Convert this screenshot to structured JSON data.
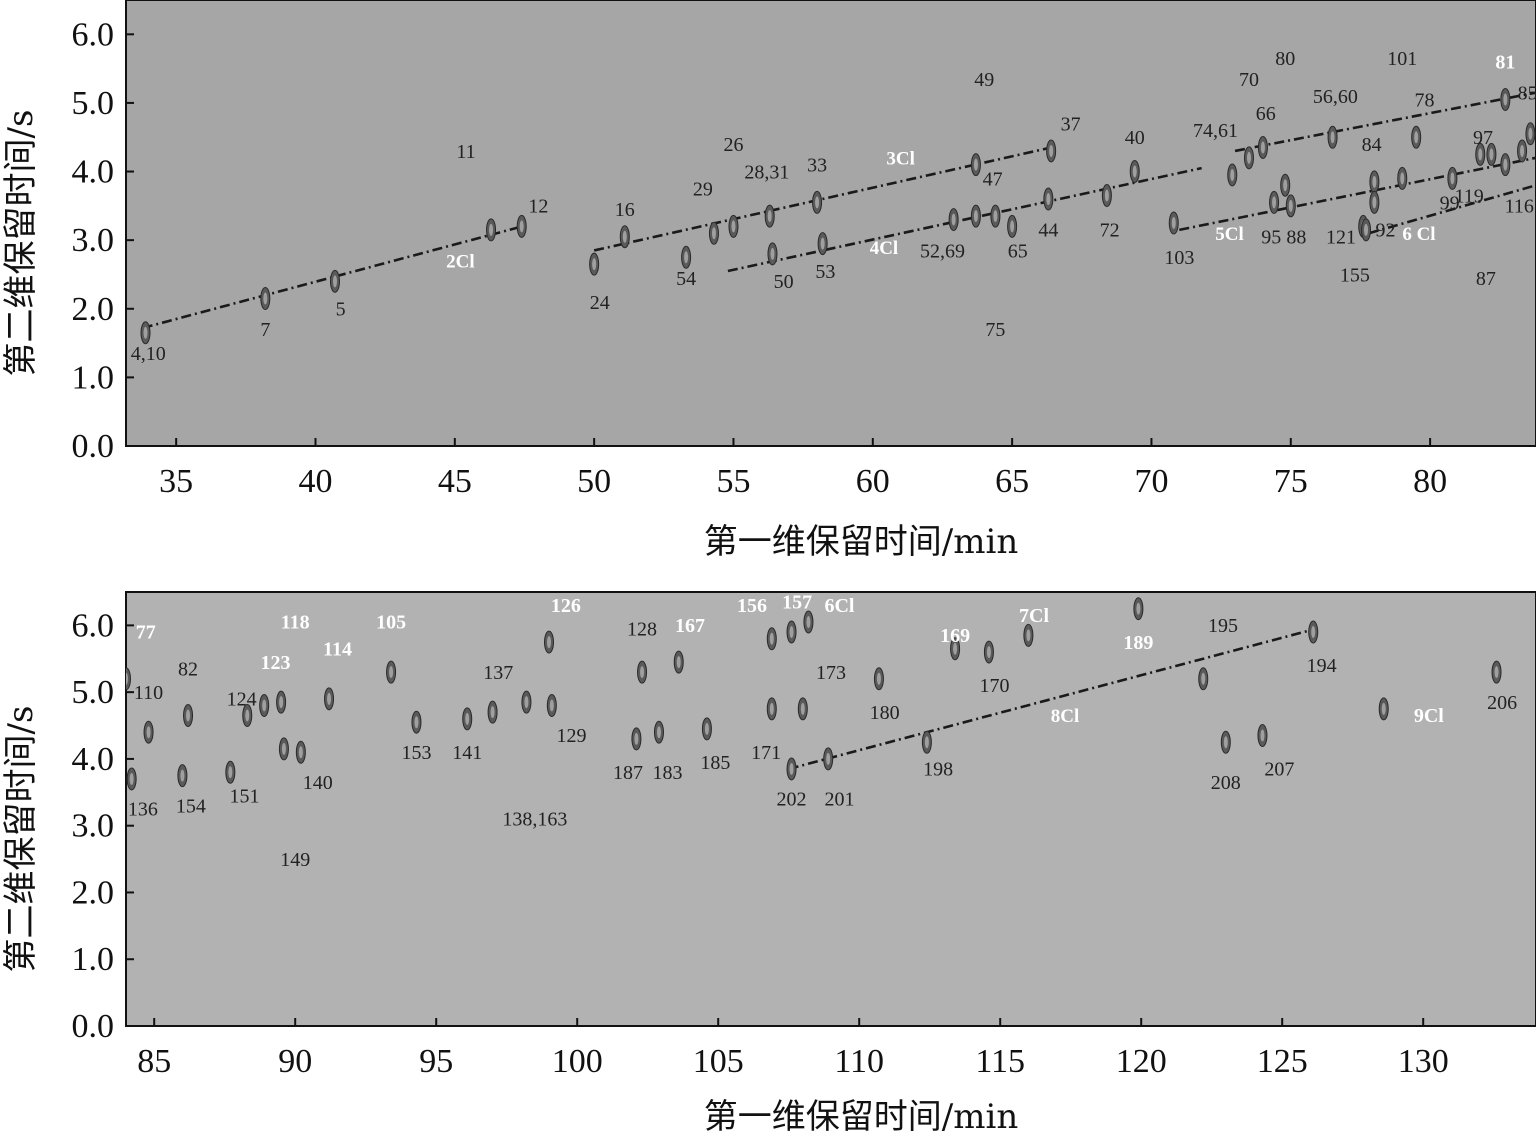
{
  "chart_data": [
    {
      "type": "scatter",
      "xlabel": "第一维保留时间/min",
      "ylabel": "第二维保留时间/s",
      "xlim": [
        33.2,
        83.8
      ],
      "ylim": [
        0,
        6.5
      ],
      "xticks": [
        "35",
        "40",
        "45",
        "50",
        "55",
        "60",
        "65",
        "70",
        "75",
        "80"
      ],
      "yticks": [
        "0.0",
        "1.0",
        "2.0",
        "3.0",
        "4.0",
        "5.0",
        "6.0"
      ],
      "background": "#a6a6a6",
      "series": [
        {
          "name": "2Cl",
          "line": [
            [
              33.8,
              1.72
            ],
            [
              47.6,
              3.22
            ]
          ],
          "label_at": [
            45.2,
            2.6
          ]
        },
        {
          "name": "3Cl",
          "line": [
            [
              50.0,
              2.85
            ],
            [
              66.4,
              4.35
            ]
          ],
          "label_at": [
            61.0,
            4.1
          ]
        },
        {
          "name": "4Cl",
          "line": [
            [
              54.8,
              2.55
            ],
            [
              71.8,
              4.05
            ]
          ],
          "label_at": [
            60.4,
            2.8
          ]
        },
        {
          "name": "5Cl",
          "line": [
            [
              71.0,
              3.15
            ],
            [
              83.8,
              4.2
            ]
          ],
          "label_at": [
            72.8,
            3.0
          ]
        },
        {
          "name": "6 Cl",
          "line": [
            [
              77.8,
              3.1
            ],
            [
              83.8,
              3.8
            ]
          ],
          "label_at": [
            79.6,
            3.0
          ]
        },
        {
          "name": "",
          "line": [
            [
              73.0,
              4.3
            ],
            [
              83.8,
              5.15
            ]
          ],
          "label_at": null
        }
      ],
      "peaks": [
        {
          "label": "4,10",
          "x": 33.9,
          "y": 1.65,
          "lx": 34.0,
          "ly": 1.25
        },
        {
          "label": "7",
          "x": 38.2,
          "y": 2.15,
          "lx": 38.2,
          "ly": 1.6
        },
        {
          "label": "5",
          "x": 40.7,
          "y": 2.4,
          "lx": 40.9,
          "ly": 1.9
        },
        {
          "label": "11",
          "x": 46.3,
          "y": 3.15,
          "lx": 45.4,
          "ly": 4.2
        },
        {
          "label": "12",
          "x": 47.4,
          "y": 3.2,
          "lx": 48.0,
          "ly": 3.4
        },
        {
          "label": "16",
          "x": 51.1,
          "y": 3.05,
          "lx": 51.1,
          "ly": 3.35
        },
        {
          "label": "24",
          "x": 50.0,
          "y": 2.65,
          "lx": 50.2,
          "ly": 2.0
        },
        {
          "label": "54",
          "x": 53.3,
          "y": 2.75,
          "lx": 53.3,
          "ly": 2.35
        },
        {
          "label": "29",
          "x": 54.3,
          "y": 3.1,
          "lx": 53.9,
          "ly": 3.65
        },
        {
          "label": "26",
          "x": 55.0,
          "y": 3.2,
          "lx": 55.0,
          "ly": 4.3
        },
        {
          "label": "28,31",
          "x": 56.3,
          "y": 3.35,
          "lx": 56.2,
          "ly": 3.9
        },
        {
          "label": "50",
          "x": 56.4,
          "y": 2.8,
          "lx": 56.8,
          "ly": 2.3
        },
        {
          "label": "53",
          "x": 58.2,
          "y": 2.95,
          "lx": 58.3,
          "ly": 2.45
        },
        {
          "label": "33",
          "x": 58.0,
          "y": 3.55,
          "lx": 58.0,
          "ly": 4.0
        },
        {
          "label": "52,69",
          "x": 62.9,
          "y": 3.3,
          "lx": 62.5,
          "ly": 2.75
        },
        {
          "label": "47",
          "x": 63.7,
          "y": 3.35,
          "lx": 64.3,
          "ly": 3.8
        },
        {
          "label": "49",
          "x": 63.7,
          "y": 4.1,
          "lx": 64.0,
          "ly": 5.25
        },
        {
          "label": "75",
          "x": 64.4,
          "y": 3.35,
          "lx": 64.4,
          "ly": 1.6
        },
        {
          "label": "65",
          "x": 65.0,
          "y": 3.2,
          "lx": 65.2,
          "ly": 2.75
        },
        {
          "label": "44",
          "x": 66.3,
          "y": 3.6,
          "lx": 66.3,
          "ly": 3.05
        },
        {
          "label": "37",
          "x": 66.4,
          "y": 4.3,
          "lx": 67.1,
          "ly": 4.6
        },
        {
          "label": "72",
          "x": 68.4,
          "y": 3.65,
          "lx": 68.5,
          "ly": 3.05
        },
        {
          "label": "40",
          "x": 69.4,
          "y": 4.0,
          "lx": 69.4,
          "ly": 4.4
        },
        {
          "label": "103",
          "x": 70.8,
          "y": 3.25,
          "lx": 71.0,
          "ly": 2.65
        },
        {
          "label": "74,61",
          "x": 72.9,
          "y": 3.95,
          "lx": 72.3,
          "ly": 4.5
        },
        {
          "label": "70",
          "x": 73.5,
          "y": 4.2,
          "lx": 73.5,
          "ly": 5.25
        },
        {
          "label": "66",
          "x": 74.0,
          "y": 4.35,
          "lx": 74.1,
          "ly": 4.75
        },
        {
          "label": "95",
          "x": 74.4,
          "y": 3.55,
          "lx": 74.3,
          "ly": 2.95
        },
        {
          "label": "88",
          "x": 75.0,
          "y": 3.5,
          "lx": 75.2,
          "ly": 2.95
        },
        {
          "label": "80",
          "x": 74.8,
          "y": 3.8,
          "lx": 74.8,
          "ly": 5.55
        },
        {
          "label": "56,60",
          "x": 76.5,
          "y": 4.5,
          "lx": 76.6,
          "ly": 5.0
        },
        {
          "label": "121",
          "x": 77.6,
          "y": 3.2,
          "lx": 76.8,
          "ly": 2.95
        },
        {
          "label": "155",
          "x": 77.7,
          "y": 3.15,
          "lx": 77.3,
          "ly": 2.4
        },
        {
          "label": "84",
          "x": 78.0,
          "y": 3.85,
          "lx": 77.9,
          "ly": 4.3
        },
        {
          "label": "92",
          "x": 78.0,
          "y": 3.55,
          "lx": 78.4,
          "ly": 3.05
        },
        {
          "label": "101",
          "x": 79.0,
          "y": 3.9,
          "lx": 79.0,
          "ly": 5.55
        },
        {
          "label": "78",
          "x": 79.5,
          "y": 4.5,
          "lx": 79.8,
          "ly": 4.95
        },
        {
          "label": "99",
          "x": 80.8,
          "y": 3.9,
          "lx": 80.7,
          "ly": 3.45
        },
        {
          "label": "119",
          "x": 81.8,
          "y": 4.25,
          "lx": 81.4,
          "ly": 3.55
        },
        {
          "label": "97",
          "x": 82.2,
          "y": 4.25,
          "lx": 81.9,
          "ly": 4.4
        },
        {
          "label": "87",
          "x": 82.7,
          "y": 4.1,
          "lx": 82.0,
          "ly": 2.35
        },
        {
          "label": "116",
          "x": 83.3,
          "y": 4.3,
          "lx": 83.2,
          "ly": 3.4
        },
        {
          "label": "81",
          "x": 82.7,
          "y": 5.05,
          "lx": 82.7,
          "ly": 5.5,
          "white": true
        },
        {
          "label": "85",
          "x": 83.6,
          "y": 4.55,
          "lx": 83.5,
          "ly": 5.05
        }
      ]
    },
    {
      "type": "scatter",
      "xlabel": "第一维保留时间/min",
      "ylabel": "第二维保留时间/s",
      "xlim": [
        84,
        134
      ],
      "ylim": [
        0,
        6.5
      ],
      "xticks": [
        "85",
        "90",
        "95",
        "100",
        "105",
        "110",
        "115",
        "120",
        "125",
        "130"
      ],
      "yticks": [
        "0.0",
        "1.0",
        "2.0",
        "3.0",
        "4.0",
        "5.0",
        "6.0"
      ],
      "background": "#b2b2b2",
      "series": [
        {
          "name": "8Cl",
          "line": [
            [
              107.5,
              3.85
            ],
            [
              126.2,
              5.95
            ]
          ],
          "label_at": [
            117.3,
            4.55
          ]
        }
      ],
      "peaks": [
        {
          "label": "77",
          "x": 84.0,
          "y": 5.2,
          "lx": 84.7,
          "ly": 5.8,
          "white": true
        },
        {
          "label": "110",
          "x": 84.8,
          "y": 4.4,
          "lx": 84.8,
          "ly": 4.9
        },
        {
          "label": "136",
          "x": 84.2,
          "y": 3.7,
          "lx": 84.6,
          "ly": 3.15
        },
        {
          "label": "82",
          "x": 86.2,
          "y": 4.65,
          "lx": 86.2,
          "ly": 5.25
        },
        {
          "label": "154",
          "x": 86.0,
          "y": 3.75,
          "lx": 86.3,
          "ly": 3.2
        },
        {
          "label": "124",
          "x": 88.3,
          "y": 4.65,
          "lx": 88.1,
          "ly": 4.8
        },
        {
          "label": "151",
          "x": 87.7,
          "y": 3.8,
          "lx": 88.2,
          "ly": 3.35
        },
        {
          "label": "123",
          "x": 88.9,
          "y": 4.8,
          "lx": 89.3,
          "ly": 5.35,
          "white": true
        },
        {
          "label": "118",
          "x": 89.5,
          "y": 4.85,
          "lx": 90.0,
          "ly": 5.95,
          "white": true
        },
        {
          "label": "149",
          "x": 89.6,
          "y": 4.15,
          "lx": 90.0,
          "ly": 2.4
        },
        {
          "label": "140",
          "x": 90.2,
          "y": 4.1,
          "lx": 90.8,
          "ly": 3.55
        },
        {
          "label": "114",
          "x": 91.2,
          "y": 4.9,
          "lx": 91.5,
          "ly": 5.55,
          "white": true
        },
        {
          "label": "105",
          "x": 93.4,
          "y": 5.3,
          "lx": 93.4,
          "ly": 5.95,
          "white": true
        },
        {
          "label": "153",
          "x": 94.3,
          "y": 4.55,
          "lx": 94.3,
          "ly": 4.0
        },
        {
          "label": "141",
          "x": 96.1,
          "y": 4.6,
          "lx": 96.1,
          "ly": 4.0
        },
        {
          "label": "137",
          "x": 97.0,
          "y": 4.7,
          "lx": 97.2,
          "ly": 5.2
        },
        {
          "label": "138,163",
          "x": 98.2,
          "y": 4.85,
          "lx": 98.5,
          "ly": 3.0
        },
        {
          "label": "129",
          "x": 99.1,
          "y": 4.8,
          "lx": 99.8,
          "ly": 4.25
        },
        {
          "label": "126",
          "x": 99.0,
          "y": 5.75,
          "lx": 99.6,
          "ly": 6.2,
          "white": true
        },
        {
          "label": "187",
          "x": 102.1,
          "y": 4.3,
          "lx": 101.8,
          "ly": 3.7
        },
        {
          "label": "183",
          "x": 102.9,
          "y": 4.4,
          "lx": 103.2,
          "ly": 3.7
        },
        {
          "label": "128",
          "x": 102.3,
          "y": 5.3,
          "lx": 102.3,
          "ly": 5.85
        },
        {
          "label": "167",
          "x": 103.6,
          "y": 5.45,
          "lx": 104.0,
          "ly": 5.9,
          "white": true
        },
        {
          "label": "185",
          "x": 104.6,
          "y": 4.45,
          "lx": 104.9,
          "ly": 3.85
        },
        {
          "label": "171",
          "x": 106.9,
          "y": 4.75,
          "lx": 106.7,
          "ly": 4.0
        },
        {
          "label": "156",
          "x": 106.9,
          "y": 5.8,
          "lx": 106.2,
          "ly": 6.2,
          "white": true
        },
        {
          "label": "157",
          "x": 107.6,
          "y": 5.9,
          "lx": 107.8,
          "ly": 6.25,
          "white": true
        },
        {
          "label": "6Cl",
          "x": 108.2,
          "y": 6.05,
          "lx": 109.3,
          "ly": 6.2,
          "white": true
        },
        {
          "label": "173",
          "x": 108.0,
          "y": 4.75,
          "lx": 109.0,
          "ly": 5.2
        },
        {
          "label": "202",
          "x": 107.6,
          "y": 3.85,
          "lx": 107.6,
          "ly": 3.3
        },
        {
          "label": "201",
          "x": 108.9,
          "y": 4.0,
          "lx": 109.3,
          "ly": 3.3
        },
        {
          "label": "180",
          "x": 110.7,
          "y": 5.2,
          "lx": 110.9,
          "ly": 4.6
        },
        {
          "label": "198",
          "x": 112.4,
          "y": 4.25,
          "lx": 112.8,
          "ly": 3.75
        },
        {
          "label": "169",
          "x": 113.4,
          "y": 5.65,
          "lx": 113.4,
          "ly": 5.75,
          "white": true
        },
        {
          "label": "170",
          "x": 114.6,
          "y": 5.6,
          "lx": 114.8,
          "ly": 5.0
        },
        {
          "label": "7Cl",
          "x": 116.0,
          "y": 5.85,
          "lx": 116.2,
          "ly": 6.05,
          "white": true
        },
        {
          "label": "189",
          "x": 119.9,
          "y": 6.25,
          "lx": 119.9,
          "ly": 5.65,
          "white": true
        },
        {
          "label": "195",
          "x": 122.2,
          "y": 5.2,
          "lx": 122.9,
          "ly": 5.9
        },
        {
          "label": "208",
          "x": 123.0,
          "y": 4.25,
          "lx": 123.0,
          "ly": 3.55
        },
        {
          "label": "207",
          "x": 124.3,
          "y": 4.35,
          "lx": 124.9,
          "ly": 3.75
        },
        {
          "label": "194",
          "x": 126.1,
          "y": 5.9,
          "lx": 126.4,
          "ly": 5.3
        },
        {
          "label": "9Cl",
          "x": 128.6,
          "y": 4.75,
          "lx": 130.2,
          "ly": 4.55,
          "white": true
        },
        {
          "label": "206",
          "x": 132.6,
          "y": 5.3,
          "lx": 132.8,
          "ly": 4.75
        }
      ]
    }
  ]
}
